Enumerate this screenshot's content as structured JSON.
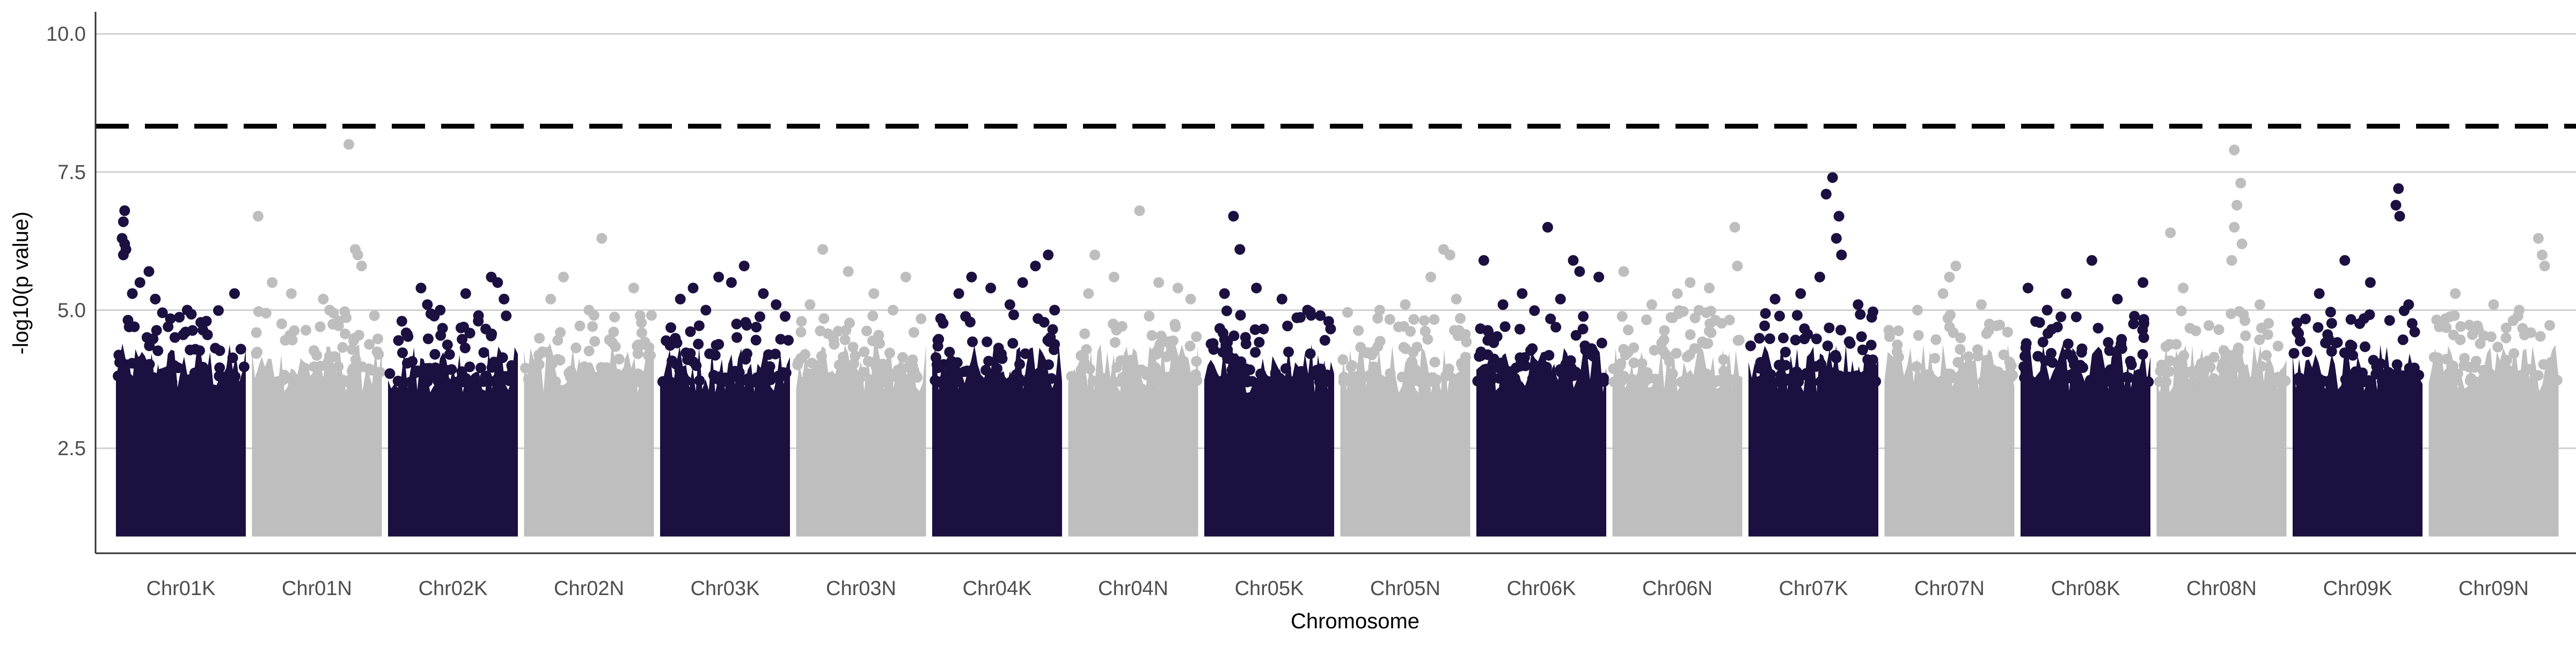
{
  "chart_data": {
    "type": "scatter",
    "title": "",
    "xlabel": "Chromosome",
    "ylabel": "-log10(p value)",
    "ylim": [
      0.6,
      10.4
    ],
    "yticks": [
      2.5,
      5.0,
      7.5,
      10.0
    ],
    "ytick_labels": [
      "2.5",
      "5.0",
      "7.5",
      "10.0"
    ],
    "threshold": 8.33,
    "grid": "horizontal",
    "legend": "none",
    "colors": {
      "odd": "#1b1040",
      "even": "#bebebe",
      "threshold": "#000000"
    },
    "categories": [
      "Chr01K",
      "Chr01N",
      "Chr02K",
      "Chr02N",
      "Chr03K",
      "Chr03N",
      "Chr04K",
      "Chr04N",
      "Chr05K",
      "Chr05N",
      "Chr06K",
      "Chr06N",
      "Chr07K",
      "Chr07N",
      "Chr08K",
      "Chr08N",
      "Chr09K",
      "Chr09N"
    ],
    "series": [
      {
        "values": [
          [
            0.06,
            6.8
          ],
          [
            0.05,
            6.6
          ],
          [
            0.04,
            6.3
          ],
          [
            0.06,
            6.2
          ],
          [
            0.07,
            6.1
          ],
          [
            0.05,
            6.0
          ],
          [
            0.25,
            5.7
          ],
          [
            0.92,
            5.3
          ],
          [
            0.18,
            5.5
          ],
          [
            0.12,
            5.3
          ],
          [
            0.3,
            5.2
          ],
          [
            0.55,
            5.0
          ],
          [
            0.7,
            4.8
          ],
          [
            0.4,
            4.7
          ]
        ]
      },
      {
        "values": [
          [
            0.04,
            6.7
          ],
          [
            0.75,
            8.0
          ],
          [
            0.8,
            6.1
          ],
          [
            0.82,
            6.0
          ],
          [
            0.85,
            5.8
          ],
          [
            0.3,
            5.3
          ],
          [
            0.15,
            5.5
          ],
          [
            0.55,
            5.2
          ],
          [
            0.6,
            5.0
          ],
          [
            0.95,
            4.9
          ]
        ]
      },
      {
        "values": [
          [
            0.25,
            5.4
          ],
          [
            0.8,
            5.6
          ],
          [
            0.85,
            5.5
          ],
          [
            0.6,
            5.3
          ],
          [
            0.9,
            5.2
          ],
          [
            0.3,
            5.1
          ],
          [
            0.4,
            5.0
          ],
          [
            0.7,
            4.9
          ],
          [
            0.1,
            4.8
          ]
        ]
      },
      {
        "values": [
          [
            0.6,
            6.3
          ],
          [
            0.3,
            5.6
          ],
          [
            0.85,
            5.4
          ],
          [
            0.2,
            5.2
          ],
          [
            0.5,
            5.0
          ],
          [
            0.9,
            4.9
          ]
        ]
      },
      {
        "values": [
          [
            0.45,
            5.6
          ],
          [
            0.65,
            5.8
          ],
          [
            0.55,
            5.5
          ],
          [
            0.25,
            5.4
          ],
          [
            0.8,
            5.3
          ],
          [
            0.15,
            5.2
          ],
          [
            0.9,
            5.1
          ],
          [
            0.35,
            5.0
          ]
        ]
      },
      {
        "values": [
          [
            0.2,
            6.1
          ],
          [
            0.4,
            5.7
          ],
          [
            0.85,
            5.6
          ],
          [
            0.6,
            5.3
          ],
          [
            0.1,
            5.1
          ],
          [
            0.75,
            5.0
          ]
        ]
      },
      {
        "values": [
          [
            0.3,
            5.6
          ],
          [
            0.9,
            6.0
          ],
          [
            0.8,
            5.8
          ],
          [
            0.7,
            5.5
          ],
          [
            0.45,
            5.4
          ],
          [
            0.2,
            5.3
          ],
          [
            0.6,
            5.1
          ],
          [
            0.95,
            5.0
          ]
        ]
      },
      {
        "values": [
          [
            0.2,
            6.0
          ],
          [
            0.55,
            6.8
          ],
          [
            0.35,
            5.6
          ],
          [
            0.7,
            5.5
          ],
          [
            0.85,
            5.4
          ],
          [
            0.15,
            5.3
          ],
          [
            0.95,
            5.2
          ]
        ]
      },
      {
        "values": [
          [
            0.22,
            6.7
          ],
          [
            0.27,
            6.1
          ],
          [
            0.4,
            5.4
          ],
          [
            0.15,
            5.3
          ],
          [
            0.6,
            5.2
          ],
          [
            0.8,
            5.0
          ],
          [
            0.9,
            4.9
          ]
        ]
      },
      {
        "values": [
          [
            0.8,
            6.1
          ],
          [
            0.85,
            6.0
          ],
          [
            0.7,
            5.6
          ],
          [
            0.5,
            5.1
          ],
          [
            0.3,
            5.0
          ],
          [
            0.9,
            5.2
          ]
        ]
      },
      {
        "values": [
          [
            0.05,
            5.9
          ],
          [
            0.55,
            6.5
          ],
          [
            0.75,
            5.9
          ],
          [
            0.8,
            5.7
          ],
          [
            0.95,
            5.6
          ],
          [
            0.35,
            5.3
          ],
          [
            0.65,
            5.2
          ],
          [
            0.2,
            5.1
          ]
        ]
      },
      {
        "values": [
          [
            0.08,
            5.7
          ],
          [
            0.5,
            5.3
          ],
          [
            0.6,
            5.5
          ],
          [
            0.75,
            5.4
          ],
          [
            0.95,
            6.5
          ],
          [
            0.97,
            5.8
          ],
          [
            0.3,
            5.1
          ]
        ]
      },
      {
        "values": [
          [
            0.6,
            7.1
          ],
          [
            0.65,
            7.4
          ],
          [
            0.7,
            6.7
          ],
          [
            0.68,
            6.3
          ],
          [
            0.72,
            6.0
          ],
          [
            0.55,
            5.6
          ],
          [
            0.2,
            5.2
          ],
          [
            0.4,
            5.3
          ],
          [
            0.85,
            5.1
          ]
        ]
      },
      {
        "values": [
          [
            0.55,
            5.8
          ],
          [
            0.5,
            5.6
          ],
          [
            0.45,
            5.3
          ],
          [
            0.75,
            5.1
          ],
          [
            0.25,
            5.0
          ]
        ]
      },
      {
        "values": [
          [
            0.05,
            5.4
          ],
          [
            0.55,
            5.9
          ],
          [
            0.95,
            5.5
          ],
          [
            0.35,
            5.3
          ],
          [
            0.75,
            5.2
          ],
          [
            0.2,
            5.0
          ]
        ]
      },
      {
        "values": [
          [
            0.1,
            6.4
          ],
          [
            0.2,
            5.4
          ],
          [
            0.6,
            7.9
          ],
          [
            0.65,
            7.3
          ],
          [
            0.62,
            6.9
          ],
          [
            0.6,
            6.5
          ],
          [
            0.66,
            6.2
          ],
          [
            0.58,
            5.9
          ],
          [
            0.8,
            5.1
          ]
        ]
      },
      {
        "values": [
          [
            0.4,
            5.9
          ],
          [
            0.82,
            7.2
          ],
          [
            0.8,
            6.9
          ],
          [
            0.83,
            6.7
          ],
          [
            0.6,
            5.5
          ],
          [
            0.2,
            5.3
          ],
          [
            0.9,
            5.1
          ]
        ]
      },
      {
        "values": [
          [
            0.85,
            6.3
          ],
          [
            0.88,
            6.0
          ],
          [
            0.9,
            5.8
          ],
          [
            0.2,
            5.3
          ],
          [
            0.5,
            5.1
          ],
          [
            0.7,
            5.0
          ]
        ]
      }
    ]
  }
}
